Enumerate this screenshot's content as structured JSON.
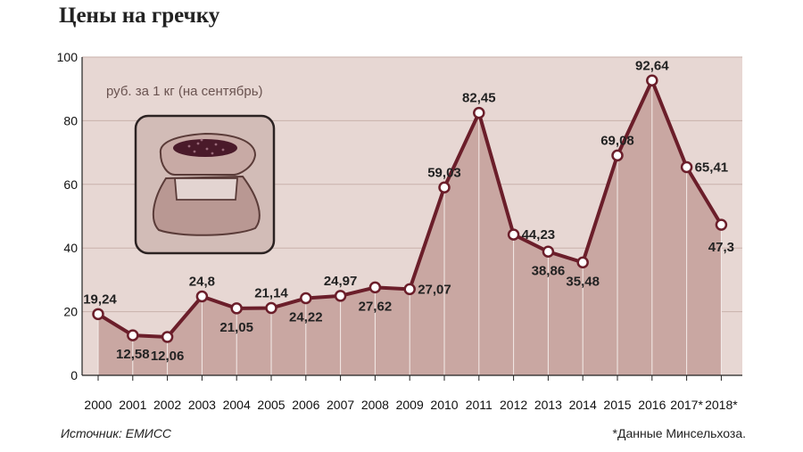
{
  "title": "Цены на гречку",
  "source": "Источник: ЕМИСС",
  "footnote": "*Данные Минсельхоза.",
  "icon": "grain-sack-icon",
  "colors": {
    "line": "#6b1e2a",
    "area": "#c9a7a2",
    "background": "#e7d7d3",
    "grid": "#c9b1ab",
    "panel": "#d2bcb7"
  },
  "chart_data": {
    "type": "area",
    "title": "Цены на гречку",
    "unit_label": "руб. за 1 кг (на сентябрь)",
    "categories": [
      "2000",
      "2001",
      "2002",
      "2003",
      "2004",
      "2005",
      "2006",
      "2007",
      "2008",
      "2009",
      "2010",
      "2011",
      "2012",
      "2013",
      "2014",
      "2015",
      "2016",
      "2017*",
      "2018*"
    ],
    "values": [
      19.24,
      12.58,
      12.06,
      24.8,
      21.05,
      21.14,
      24.22,
      24.97,
      27.62,
      27.07,
      59.03,
      82.45,
      44.23,
      38.86,
      35.48,
      69.08,
      92.64,
      65.41,
      47.3
    ],
    "value_labels": [
      "19,24",
      "12,58",
      "12,06",
      "24,8",
      "21,05",
      "21,14",
      "24,22",
      "24,97",
      "27,62",
      "27,07",
      "59,03",
      "82,45",
      "44,23",
      "38,86",
      "35,48",
      "69,08",
      "92,64",
      "65,41",
      "47,3"
    ],
    "label_positions": [
      "above",
      "below",
      "below",
      "above",
      "below",
      "above",
      "below",
      "above",
      "below",
      "right",
      "above",
      "above",
      "right",
      "below",
      "below",
      "above",
      "above",
      "right",
      "below"
    ],
    "ylim": [
      0,
      100
    ],
    "yticks": [
      0,
      20,
      40,
      60,
      80,
      100
    ],
    "grid": true,
    "xlabel": "",
    "ylabel": ""
  }
}
